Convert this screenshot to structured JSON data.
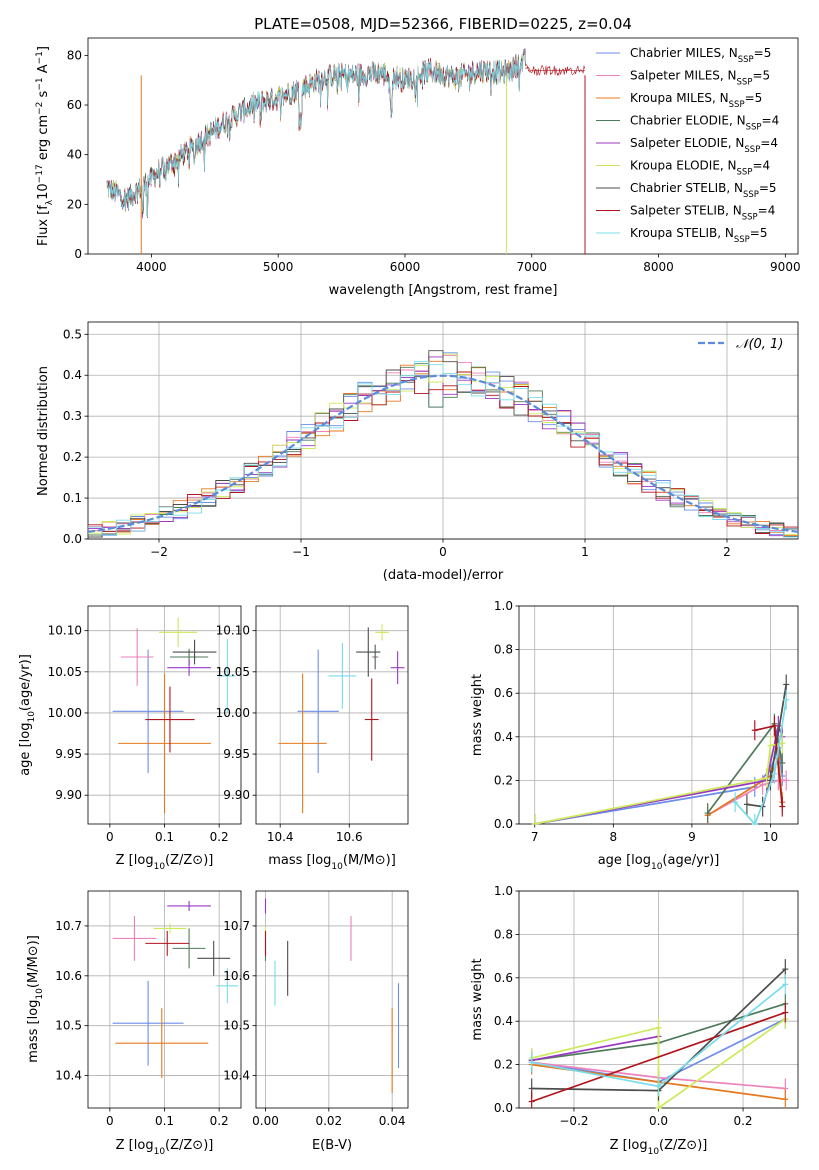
{
  "figure_title": "PLATE=0508, MJD=52366, FIBERID=0225, z=0.04",
  "colors": {
    "Chabrier MILES": "#6c8ee8",
    "Salpeter MILES": "#ee82ba",
    "Kroupa MILES": "#e6781e",
    "Chabrier ELODIE": "#4f7a5a",
    "Salpeter ELODIE": "#9b36c4",
    "Kroupa ELODIE": "#ccea5a",
    "Chabrier STELIB": "#4d4d4d",
    "Salpeter STELIB": "#b2141e",
    "Kroupa STELIB": "#78dcea",
    "normal": "#5a8cdc"
  },
  "chart_data": [
    {
      "id": "spectrum",
      "type": "line",
      "title": "PLATE=0508, MJD=52366, FIBERID=0225, z=0.04",
      "xlabel": "wavelength [Angstrom, rest frame]",
      "ylabel_parts": [
        "Flux [f",
        "λ",
        "10",
        "−17",
        " erg cm",
        "−2",
        " s",
        "−1",
        " A",
        "−1",
        "]"
      ],
      "xlim": [
        3500,
        9100
      ],
      "ylim": [
        0,
        87
      ],
      "xticks": [
        4000,
        5000,
        6000,
        7000,
        8000,
        9000
      ],
      "yticks": [
        0,
        20,
        40,
        60,
        80
      ],
      "x_range": [
        3650,
        6950
      ],
      "legend": [
        {
          "name": "Chabrier MILES, N",
          "sub": "SSP",
          "suffix": "=5"
        },
        {
          "name": "Salpeter MILES, N",
          "sub": "SSP",
          "suffix": "=5"
        },
        {
          "name": "Kroupa MILES, N",
          "sub": "SSP",
          "suffix": "=5"
        },
        {
          "name": "Chabrier ELODIE, N",
          "sub": "SSP",
          "suffix": "=4"
        },
        {
          "name": "Salpeter ELODIE, N",
          "sub": "SSP",
          "suffix": "=4"
        },
        {
          "name": "Kroupa ELODIE, N",
          "sub": "SSP",
          "suffix": "=4"
        },
        {
          "name": "Chabrier STELIB, N",
          "sub": "SSP",
          "suffix": "=5"
        },
        {
          "name": "Salpeter STELIB, N",
          "sub": "SSP",
          "suffix": "=4"
        },
        {
          "name": "Kroupa STELIB, N",
          "sub": "SSP",
          "suffix": "=5"
        }
      ],
      "continuum_anchors": [
        [
          3650,
          27
        ],
        [
          3800,
          22
        ],
        [
          3950,
          28
        ],
        [
          4050,
          33
        ],
        [
          4200,
          38
        ],
        [
          4400,
          46
        ],
        [
          4600,
          54
        ],
        [
          4800,
          60
        ],
        [
          5000,
          63
        ],
        [
          5200,
          67
        ],
        [
          5400,
          72
        ],
        [
          5600,
          72
        ],
        [
          5800,
          73
        ],
        [
          6000,
          70
        ],
        [
          6200,
          74
        ],
        [
          6400,
          71
        ],
        [
          6600,
          74
        ],
        [
          6800,
          73
        ],
        [
          6950,
          78
        ]
      ],
      "drops": [
        {
          "x": 6800,
          "series": "Kroupa ELODIE"
        },
        {
          "x": 7420,
          "series": "Salpeter STELIB"
        },
        {
          "x": 3920,
          "series": "Kroupa MILES"
        }
      ]
    },
    {
      "id": "residuals",
      "type": "histogram",
      "xlabel": "(data-model)/error",
      "ylabel": "Normed distribution",
      "xlim": [
        -2.5,
        2.5
      ],
      "ylim": [
        0,
        0.53
      ],
      "xticks": [
        -2,
        -1,
        0,
        1,
        2
      ],
      "xtick_labels": [
        "−2",
        "−1",
        "0",
        "1",
        "2"
      ],
      "yticks": [
        0.0,
        0.1,
        0.2,
        0.3,
        0.4,
        0.5
      ],
      "bin_width": 0.1,
      "legend": "𝒩(0, 1)",
      "grid": true
    },
    {
      "id": "age-vs-z",
      "type": "scatter",
      "xlabel": "Z [log10(Z/Z⊙)]",
      "ylabel": "age  [log10(age/yr)]",
      "xlim": [
        -0.04,
        0.24
      ],
      "ylim": [
        9.865,
        10.13
      ],
      "xticks": [
        0.0,
        0.1,
        0.2
      ],
      "yticks": [
        9.9,
        9.95,
        10.0,
        10.05,
        10.1
      ],
      "points": [
        {
          "series": "Chabrier MILES",
          "x": 0.07,
          "xerr": 0.065,
          "y": 10.002,
          "yerr": 0.075
        },
        {
          "series": "Salpeter MILES",
          "x": 0.05,
          "xerr": 0.03,
          "y": 10.068,
          "yerr": 0.035
        },
        {
          "series": "Kroupa MILES",
          "x": 0.1,
          "xerr": 0.085,
          "y": 9.963,
          "yerr": 0.085
        },
        {
          "series": "Chabrier ELODIE",
          "x": 0.145,
          "xerr": 0.035,
          "y": 10.068,
          "yerr": 0.01
        },
        {
          "series": "Salpeter ELODIE",
          "x": 0.145,
          "xerr": 0.04,
          "y": 10.055,
          "yerr": 0.01
        },
        {
          "series": "Kroupa ELODIE",
          "x": 0.125,
          "xerr": 0.035,
          "y": 10.098,
          "yerr": 0.018
        },
        {
          "series": "Chabrier STELIB",
          "x": 0.155,
          "xerr": 0.04,
          "y": 10.074,
          "yerr": 0.015
        },
        {
          "series": "Salpeter STELIB",
          "x": 0.11,
          "xerr": 0.045,
          "y": 9.992,
          "yerr": 0.04
        },
        {
          "series": "Kroupa STELIB",
          "x": 0.215,
          "xerr": 0.015,
          "y": 10.045,
          "yerr": 0.045
        }
      ]
    },
    {
      "id": "age-vs-mass",
      "type": "scatter",
      "xlabel": "mass [log10(M/M⊙)]",
      "ylabel": "",
      "xlim": [
        10.33,
        10.77
      ],
      "ylim": [
        9.865,
        10.13
      ],
      "xticks": [
        10.4,
        10.6
      ],
      "yticks": [
        9.9,
        9.95,
        10.0,
        10.05,
        10.1
      ],
      "points": [
        {
          "series": "Chabrier MILES",
          "x": 10.51,
          "xerr": 0.06,
          "y": 10.002,
          "yerr": 0.075
        },
        {
          "series": "Salpeter MILES",
          "x": 10.675,
          "xerr": 0.01,
          "y": 10.068,
          "yerr": 0.015
        },
        {
          "series": "Kroupa MILES",
          "x": 10.465,
          "xerr": 0.07,
          "y": 9.963,
          "yerr": 0.085
        },
        {
          "series": "Chabrier ELODIE",
          "x": 10.675,
          "xerr": 0.005,
          "y": 10.068,
          "yerr": 0.015
        },
        {
          "series": "Salpeter ELODIE",
          "x": 10.74,
          "xerr": 0.02,
          "y": 10.055,
          "yerr": 0.02
        },
        {
          "series": "Kroupa ELODIE",
          "x": 10.695,
          "xerr": 0.02,
          "y": 10.098,
          "yerr": 0.01
        },
        {
          "series": "Chabrier STELIB",
          "x": 10.655,
          "xerr": 0.035,
          "y": 10.074,
          "yerr": 0.03
        },
        {
          "series": "Salpeter STELIB",
          "x": 10.665,
          "xerr": 0.02,
          "y": 9.992,
          "yerr": 0.05
        },
        {
          "series": "Kroupa STELIB",
          "x": 10.58,
          "xerr": 0.04,
          "y": 10.045,
          "yerr": 0.04
        }
      ]
    },
    {
      "id": "weight-vs-age",
      "type": "line",
      "xlabel": "age  [log10(age/yr)]",
      "ylabel": "mass weight",
      "xlim": [
        6.8,
        10.35
      ],
      "ylim": [
        0,
        1.0
      ],
      "xticks": [
        7,
        8,
        9,
        10
      ],
      "yticks": [
        0.0,
        0.2,
        0.4,
        0.6,
        0.8,
        1.0
      ],
      "grid": true,
      "series": [
        {
          "name": "Chabrier MILES",
          "points": [
            [
              7.0,
              0.0
            ],
            [
              9.8,
              0.17
            ],
            [
              10.0,
              0.25
            ],
            [
              10.1,
              0.35
            ],
            [
              10.15,
              0.22
            ]
          ]
        },
        {
          "name": "Salpeter MILES",
          "points": [
            [
              9.2,
              0.04
            ],
            [
              9.9,
              0.18
            ],
            [
              10.1,
              0.2
            ],
            [
              10.2,
              0.2
            ]
          ]
        },
        {
          "name": "Kroupa MILES",
          "points": [
            [
              9.2,
              0.04
            ],
            [
              10.0,
              0.22
            ],
            [
              10.1,
              0.3
            ],
            [
              10.15,
              0.1
            ]
          ]
        },
        {
          "name": "Chabrier ELODIE",
          "points": [
            [
              9.2,
              0.05
            ],
            [
              10.05,
              0.46
            ],
            [
              10.15,
              0.28
            ]
          ]
        },
        {
          "name": "Salpeter ELODIE",
          "points": [
            [
              7.0,
              0.0
            ],
            [
              9.95,
              0.2
            ],
            [
              10.1,
              0.45
            ],
            [
              10.15,
              0.4
            ]
          ]
        },
        {
          "name": "Kroupa ELODIE",
          "points": [
            [
              7.0,
              0.0
            ],
            [
              9.95,
              0.21
            ],
            [
              10.0,
              0.36
            ],
            [
              10.15,
              0.37
            ]
          ]
        },
        {
          "name": "Chabrier STELIB",
          "points": [
            [
              9.7,
              0.09
            ],
            [
              9.9,
              0.08
            ],
            [
              10.0,
              0.2
            ],
            [
              10.2,
              0.64
            ]
          ]
        },
        {
          "name": "Salpeter STELIB",
          "points": [
            [
              9.8,
              0.43
            ],
            [
              10.05,
              0.45
            ],
            [
              10.15,
              0.08
            ]
          ]
        },
        {
          "name": "Kroupa STELIB",
          "points": [
            [
              9.55,
              0.1
            ],
            [
              9.8,
              0.0
            ],
            [
              10.05,
              0.23
            ],
            [
              10.2,
              0.57
            ]
          ]
        }
      ]
    },
    {
      "id": "mass-vs-z",
      "type": "scatter",
      "xlabel": "Z [log10(Z/Z⊙)]",
      "ylabel": "mass [log10(M/M⊙)]",
      "xlim": [
        -0.04,
        0.24
      ],
      "ylim": [
        10.335,
        10.77
      ],
      "xticks": [
        0.0,
        0.1,
        0.2
      ],
      "yticks": [
        10.4,
        10.5,
        10.6,
        10.7
      ],
      "points": [
        {
          "series": "Chabrier MILES",
          "x": 0.07,
          "xerr": 0.065,
          "y": 10.505,
          "yerr": 0.085
        },
        {
          "series": "Salpeter MILES",
          "x": 0.045,
          "xerr": 0.04,
          "y": 10.675,
          "yerr": 0.045
        },
        {
          "series": "Kroupa MILES",
          "x": 0.095,
          "xerr": 0.085,
          "y": 10.465,
          "yerr": 0.07
        },
        {
          "series": "Chabrier ELODIE",
          "x": 0.145,
          "xerr": 0.03,
          "y": 10.655,
          "yerr": 0.04
        },
        {
          "series": "Salpeter ELODIE",
          "x": 0.145,
          "xerr": 0.04,
          "y": 10.74,
          "yerr": 0.01
        },
        {
          "series": "Kroupa ELODIE",
          "x": 0.11,
          "xerr": 0.03,
          "y": 10.695,
          "yerr": 0.01
        },
        {
          "series": "Chabrier STELIB",
          "x": 0.19,
          "xerr": 0.03,
          "y": 10.635,
          "yerr": 0.035
        },
        {
          "series": "Salpeter STELIB",
          "x": 0.105,
          "xerr": 0.04,
          "y": 10.665,
          "yerr": 0.025
        },
        {
          "series": "Kroupa STELIB",
          "x": 0.215,
          "xerr": 0.02,
          "y": 10.58,
          "yerr": 0.035
        }
      ]
    },
    {
      "id": "mass-vs-ebv",
      "type": "scatter",
      "xlabel": "E(B-V)",
      "ylabel": "",
      "xlim": [
        -0.003,
        0.045
      ],
      "ylim": [
        10.335,
        10.77
      ],
      "xticks": [
        0.0,
        0.02,
        0.04
      ],
      "xtick_labels": [
        "0.00",
        "0.02",
        "0.04"
      ],
      "yticks": [
        10.4,
        10.5,
        10.6,
        10.7
      ],
      "points": [
        {
          "series": "Chabrier MILES",
          "x": 0.042,
          "xerr": 0,
          "y": 10.5,
          "yerr": 0.085
        },
        {
          "series": "Salpeter MILES",
          "x": 0.027,
          "xerr": 0,
          "y": 10.675,
          "yerr": 0.045
        },
        {
          "series": "Kroupa MILES",
          "x": 0.04,
          "xerr": 0,
          "y": 10.45,
          "yerr": 0.085
        },
        {
          "series": "Chabrier ELODIE",
          "x": 0.0,
          "xerr": 0,
          "y": 10.65,
          "yerr": 0.02
        },
        {
          "series": "Salpeter ELODIE",
          "x": 0.0,
          "xerr": 0,
          "y": 10.74,
          "yerr": 0.015
        },
        {
          "series": "Kroupa ELODIE",
          "x": 0.0,
          "xerr": 0,
          "y": 10.69,
          "yerr": 0.01
        },
        {
          "series": "Chabrier STELIB",
          "x": 0.007,
          "xerr": 0,
          "y": 10.615,
          "yerr": 0.055
        },
        {
          "series": "Salpeter STELIB",
          "x": 0.0,
          "xerr": 0,
          "y": 10.665,
          "yerr": 0.025
        },
        {
          "series": "Kroupa STELIB",
          "x": 0.003,
          "xerr": 0,
          "y": 10.585,
          "yerr": 0.045
        }
      ]
    },
    {
      "id": "weight-vs-z",
      "type": "line",
      "xlabel": "Z [log10(Z/Z⊙)]",
      "ylabel": "mass weight",
      "xlim": [
        -0.33,
        0.33
      ],
      "ylim": [
        0,
        1.0
      ],
      "xticks": [
        -0.2,
        0.0,
        0.2
      ],
      "xtick_labels": [
        "−0.2",
        "0.0",
        "0.2"
      ],
      "yticks": [
        0.0,
        0.2,
        0.4,
        0.6,
        0.8,
        1.0
      ],
      "grid": true,
      "series": [
        {
          "name": "Chabrier MILES",
          "points": [
            [
              -0.3,
              0.21
            ],
            [
              0.0,
              0.12
            ],
            [
              0.3,
              0.41
            ]
          ]
        },
        {
          "name": "Salpeter MILES",
          "points": [
            [
              -0.3,
              0.21
            ],
            [
              0.0,
              0.14
            ],
            [
              0.3,
              0.09
            ]
          ]
        },
        {
          "name": "Kroupa MILES",
          "points": [
            [
              -0.3,
              0.2
            ],
            [
              0.0,
              0.12
            ],
            [
              0.3,
              0.04
            ]
          ]
        },
        {
          "name": "Chabrier ELODIE",
          "points": [
            [
              -0.3,
              0.22
            ],
            [
              0.0,
              0.3
            ],
            [
              0.3,
              0.48
            ]
          ]
        },
        {
          "name": "Salpeter ELODIE",
          "points": [
            [
              -0.3,
              0.22
            ],
            [
              0.0,
              0.33
            ]
          ]
        },
        {
          "name": "Kroupa ELODIE",
          "points": [
            [
              -0.3,
              0.23
            ],
            [
              0.0,
              0.37
            ],
            [
              0.0,
              0.0
            ],
            [
              0.3,
              0.41
            ]
          ]
        },
        {
          "name": "Chabrier STELIB",
          "points": [
            [
              -0.3,
              0.09
            ],
            [
              0.0,
              0.08
            ],
            [
              0.3,
              0.64
            ]
          ]
        },
        {
          "name": "Salpeter STELIB",
          "points": [
            [
              -0.3,
              0.03
            ],
            [
              0.3,
              0.44
            ]
          ]
        },
        {
          "name": "Kroupa STELIB",
          "points": [
            [
              -0.3,
              0.21
            ],
            [
              0.0,
              0.1
            ],
            [
              0.3,
              0.57
            ]
          ]
        }
      ]
    }
  ]
}
